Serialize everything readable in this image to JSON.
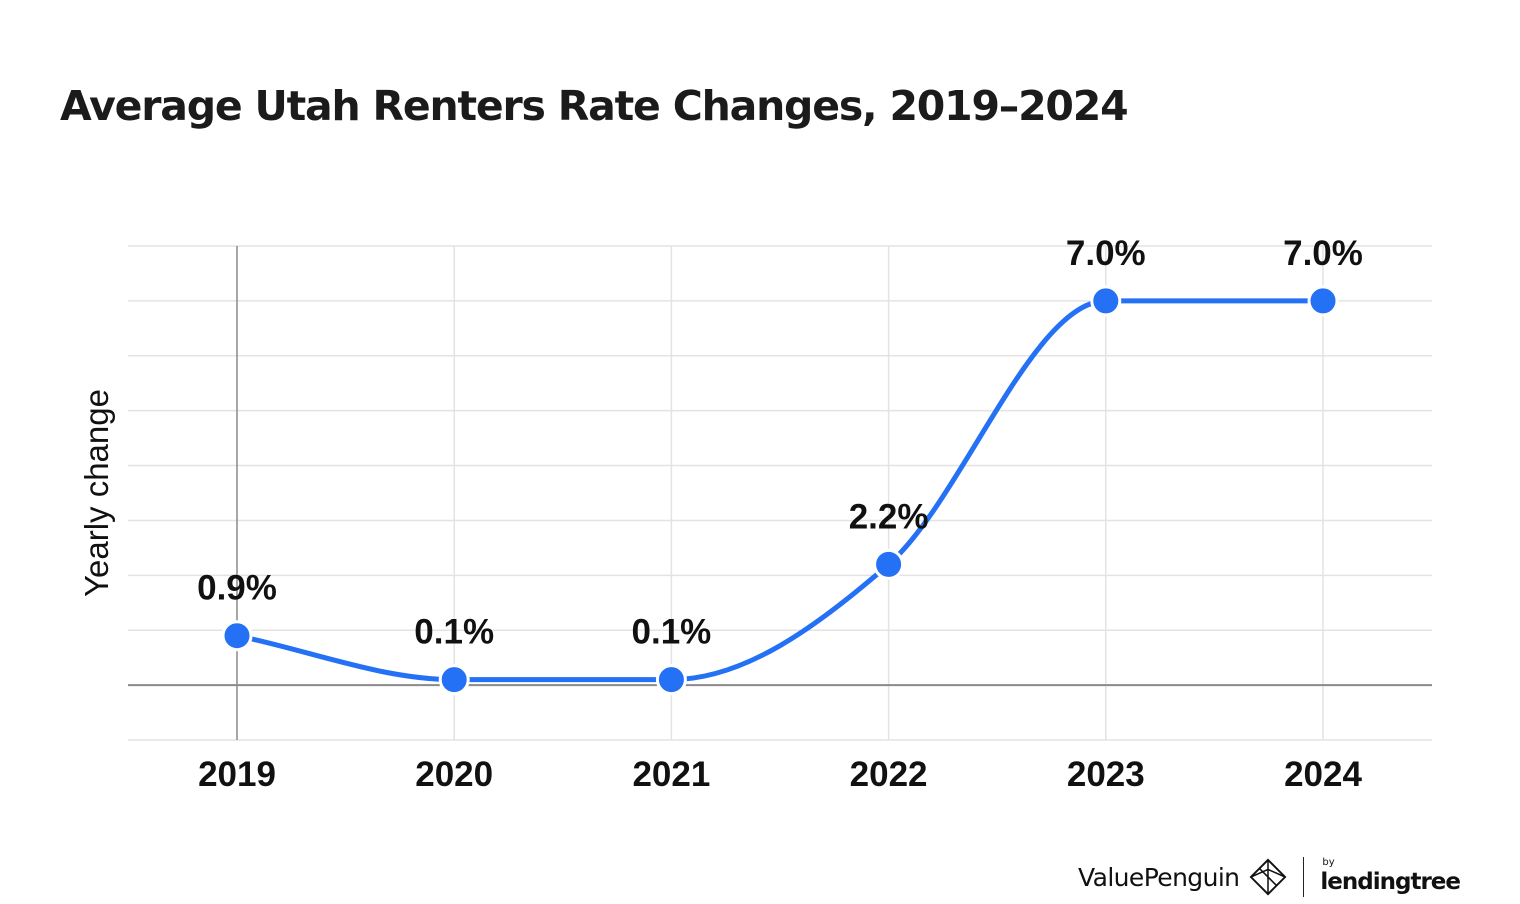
{
  "title": "Average Utah Renters Rate Changes, 2019–2024",
  "chart_data": {
    "type": "line",
    "title": "Average Utah Renters Rate Changes, 2019–2024",
    "ylabel": "Yearly change",
    "xlabel": "",
    "x": [
      "2019",
      "2020",
      "2021",
      "2022",
      "2023",
      "2024"
    ],
    "series": [
      {
        "values": [
          0.9,
          0.1,
          0.1,
          2.2,
          7.0,
          7.0
        ],
        "data_labels": [
          "0.9%",
          "0.1%",
          "0.1%",
          "2.2%",
          "7.0%",
          "7.0%"
        ]
      }
    ],
    "ylim": [
      -1,
      8
    ],
    "grid": true,
    "legend": "none",
    "line_color": "#2471f5",
    "marker_color": "#2471f5"
  },
  "footer": {
    "brand": "ValuePenguin",
    "by": "by",
    "partner": "lendingtree"
  }
}
